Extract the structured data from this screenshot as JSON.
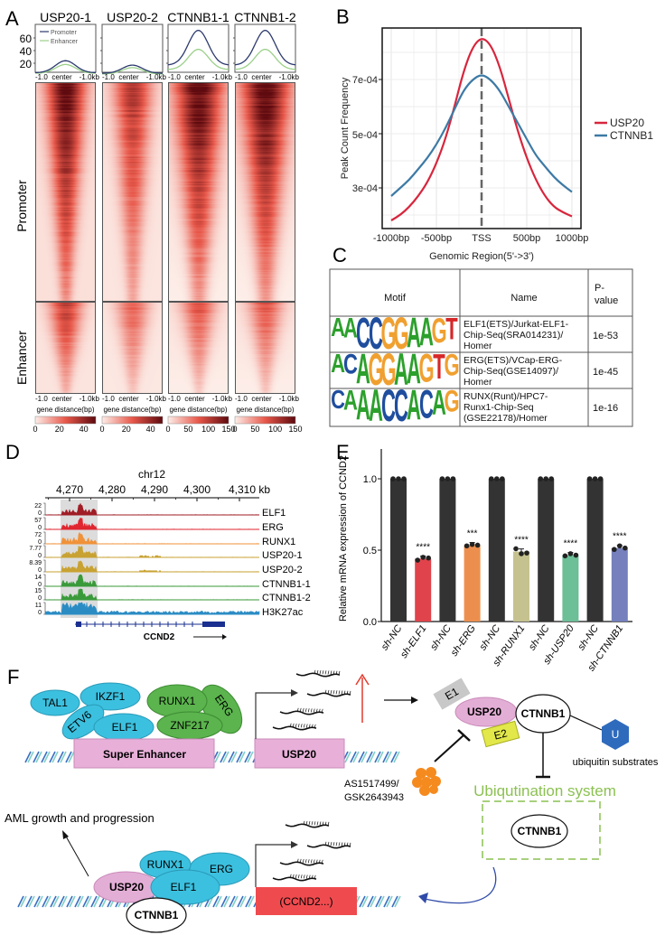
{
  "panel_labels": [
    "A",
    "B",
    "C",
    "D",
    "E",
    "F"
  ],
  "chart_data": [
    {
      "id": "A-profile",
      "type": "line",
      "samples": [
        "USP20-1",
        "USP20-2",
        "CTNNB1-1",
        "CTNNB1-2"
      ],
      "legend": [
        "Promoter",
        "Enhancer"
      ],
      "colors": {
        "Promoter": "#2d3a6e",
        "Enhancer": "#9bd08a"
      },
      "yticks": [
        "20",
        "40",
        "60"
      ],
      "xticks": [
        "-1.0",
        "center",
        "-1.0kb"
      ],
      "x_kb": [
        -1.0,
        -0.5,
        0,
        0.5,
        1.0
      ],
      "series": [
        {
          "sample": "USP20-1",
          "Promoter": [
            5,
            11,
            24,
            11,
            5
          ],
          "Enhancer": [
            4,
            9,
            18,
            9,
            4
          ]
        },
        {
          "sample": "USP20-2",
          "Promoter": [
            4,
            8,
            17,
            8,
            4
          ],
          "Enhancer": [
            3,
            6,
            13,
            6,
            3
          ]
        },
        {
          "sample": "CTNNB1-1",
          "Promoter": [
            17,
            40,
            72,
            40,
            17
          ],
          "Enhancer": [
            10,
            23,
            42,
            23,
            10
          ]
        },
        {
          "sample": "CTNNB1-2",
          "Promoter": [
            17,
            40,
            72,
            40,
            17
          ],
          "Enhancer": [
            10,
            23,
            42,
            23,
            10
          ]
        }
      ]
    },
    {
      "id": "A-heatmap",
      "type": "heatmap",
      "row_groups": [
        "Promoter",
        "Enhancer"
      ],
      "xticks": [
        "-1.0",
        "center",
        "-1.0kb"
      ],
      "xlabel": "gene distance(bp)",
      "colorbars": [
        {
          "sample": "USP20-1",
          "ticks": [
            "0",
            "20",
            "40"
          ],
          "range": [
            0,
            50
          ]
        },
        {
          "sample": "USP20-2",
          "ticks": [
            "0",
            "20",
            "40"
          ],
          "range": [
            0,
            50
          ]
        },
        {
          "sample": "CTNNB1-1",
          "ticks": [
            "0",
            "50",
            "100",
            "150"
          ],
          "range": [
            0,
            150
          ]
        },
        {
          "sample": "CTNNB1-2",
          "ticks": [
            "0",
            "50",
            "100",
            "150"
          ],
          "range": [
            0,
            150
          ]
        }
      ]
    },
    {
      "id": "B",
      "type": "line",
      "xlabel": "Genomic Region(5'->3')",
      "ylabel": "Peak Count Frequency",
      "xticks": [
        "-1000bp",
        "-500bp",
        "TSS",
        "500bp",
        "1000bp"
      ],
      "yticks": [
        "3e-04",
        "5e-04",
        "7e-04"
      ],
      "ylim": [
        0.00015,
        0.000893
      ],
      "grid": true,
      "legend_position": "right",
      "x": [
        -1000,
        -900,
        -800,
        -700,
        -600,
        -500,
        -400,
        -300,
        -200,
        -100,
        0,
        100,
        200,
        300,
        400,
        500,
        600,
        700,
        800,
        900,
        1000
      ],
      "series": [
        {
          "name": "USP20",
          "color": "#d7263d",
          "values": [
            0.00018,
            0.0002,
            0.00023,
            0.00027,
            0.00032,
            0.00039,
            0.00048,
            0.0006,
            0.00073,
            0.00082,
            0.000857,
            0.00083,
            0.00075,
            0.00063,
            0.00051,
            0.00041,
            0.00033,
            0.00027,
            0.00023,
            0.00021,
            0.000195
          ]
        },
        {
          "name": "CTNNB1",
          "color": "#3d7aa5",
          "values": [
            0.00027,
            0.0003,
            0.00033,
            0.00037,
            0.00041,
            0.00046,
            0.00052,
            0.00059,
            0.00066,
            0.0007,
            0.00072,
            0.0007,
            0.00066,
            0.0006,
            0.00054,
            0.00048,
            0.00042,
            0.00038,
            0.00034,
            0.00031,
            0.000285
          ]
        }
      ]
    },
    {
      "id": "C",
      "type": "table",
      "headers": [
        "Motif",
        "Name",
        "P-\nvalue"
      ],
      "header_pvalue_lines": [
        "P-",
        "value"
      ],
      "rows": [
        {
          "motif": "AACCGGAAGT",
          "name_lines": [
            "ELF1(ETS)/Jurkat-ELF1-",
            "Chip-Seq(SRA014231)/",
            "Homer"
          ],
          "pvalue": "1e-53"
        },
        {
          "motif": "ACAGGAAGTG",
          "name_lines": [
            "ERG(ETS)/VCap-ERG-",
            "Chip-Seq(GSE14097)/",
            "Homer"
          ],
          "pvalue": "1e-45"
        },
        {
          "motif": "CAAACCACAG",
          "name_lines": [
            "RUNX(Runt)/HPC7-",
            "Runx1-Chip-Seq",
            "(GSE22178)/Homer"
          ],
          "pvalue": "1e-16"
        }
      ],
      "base_colors": {
        "A": "#2ca02c",
        "C": "#1f4e9e",
        "G": "#f0a030",
        "T": "#d62728"
      }
    },
    {
      "id": "D",
      "type": "area",
      "chromosome": "chr12",
      "xticks": [
        "4,270",
        "4,280",
        "4,290",
        "4,300",
        "4,310 kb"
      ],
      "xtick_values_kb": [
        4270,
        4280,
        4290,
        4300,
        4310
      ],
      "highlight_region_kb": [
        4268,
        4276.6
      ],
      "tracks": [
        {
          "name": "ELF1",
          "max": "22",
          "min": "0",
          "color": "#a01d26"
        },
        {
          "name": "ERG",
          "max": "57",
          "min": "0",
          "color": "#e0262f"
        },
        {
          "name": "RUNX1",
          "max": "72",
          "min": "0",
          "color": "#f0923a"
        },
        {
          "name": "USP20-1",
          "max": "7.77",
          "min": "0",
          "color": "#c8a232"
        },
        {
          "name": "USP20-2",
          "max": "8.39",
          "min": "0",
          "color": "#c8a232"
        },
        {
          "name": "CTNNB1-1",
          "max": "14",
          "min": "0",
          "color": "#3a9a3a"
        },
        {
          "name": "CTNNB1-2",
          "max": "15",
          "min": "0",
          "color": "#3a9a3a"
        },
        {
          "name": "H3K27ac",
          "max": "11",
          "min": "0",
          "color": "#2b8cc4"
        }
      ],
      "gene": "CCND2",
      "gene_color": "#1a2f8f"
    },
    {
      "id": "E",
      "type": "bar",
      "ylabel": "Relative mRNA expression of CCND2",
      "yticks": [
        "0.0",
        "0.5",
        "1.0"
      ],
      "ylim": [
        0,
        1.2
      ],
      "categories": [
        "sh-NC",
        "sh-ELF1",
        "sh-NC",
        "sh-ERG",
        "sh-NC",
        "sh-RUNX1",
        "sh-NC",
        "sh-USP20",
        "sh-NC",
        "sh-CTNNB1"
      ],
      "values": [
        1.0,
        0.44,
        1.0,
        0.535,
        1.0,
        0.49,
        1.0,
        0.465,
        1.0,
        0.515
      ],
      "replicates": [
        [
          1,
          1,
          1
        ],
        [
          0.43,
          0.45,
          0.445
        ],
        [
          1,
          1,
          1
        ],
        [
          0.53,
          0.54,
          0.535
        ],
        [
          1,
          1,
          1
        ],
        [
          0.51,
          0.475,
          0.48
        ],
        [
          1,
          1,
          1
        ],
        [
          0.46,
          0.475,
          0.465
        ],
        [
          1,
          1,
          1
        ],
        [
          0.505,
          0.53,
          0.515
        ]
      ],
      "significance": [
        "",
        "****",
        "",
        "***",
        "",
        "****",
        "",
        "****",
        "",
        "****"
      ],
      "colors": [
        "#333333",
        "#e0434b",
        "#333333",
        "#ec8f4e",
        "#333333",
        "#c5c28f",
        "#333333",
        "#6cbf97",
        "#333333",
        "#7580bd"
      ]
    }
  ],
  "diagram": {
    "top_factors_blue": [
      "TAL1",
      "IKZF1",
      "ETV6",
      "ELF1"
    ],
    "top_factors_green": [
      "RUNX1",
      "ERG",
      "ZNF217"
    ],
    "super_enhancer": "Super Enhancer",
    "usp20_gene": "USP20",
    "e1": "E1",
    "e2": "E2",
    "usp20_protein": "USP20",
    "ctnnb1": "CTNNB1",
    "ubiquitin": "U",
    "ubiquitin_label": "ubiquitin substrates",
    "inhibitor_line1": "AS1517499/",
    "inhibitor_line2": "GSK2643943",
    "ubiq_system": "Ubiqutination system",
    "ubiq_ctnnb1": "CTNNB1",
    "aml": "AML growth and progression",
    "bottom_usp20": "USP20",
    "bottom_runx1": "RUNX1",
    "bottom_erg": "ERG",
    "bottom_elf1": "ELF1",
    "bottom_ctnnb1": "CTNNB1",
    "target_gene": "(CCND2...)",
    "colors": {
      "blue_factor": "#3cc0df",
      "green_factor": "#5bb44d",
      "pink": "#e3aed6",
      "gene_box": "#e8b0d8",
      "target_box": "#ef4b4f",
      "ubiq_green": "#8cc152",
      "hexagon": "#2f6bbd"
    }
  }
}
